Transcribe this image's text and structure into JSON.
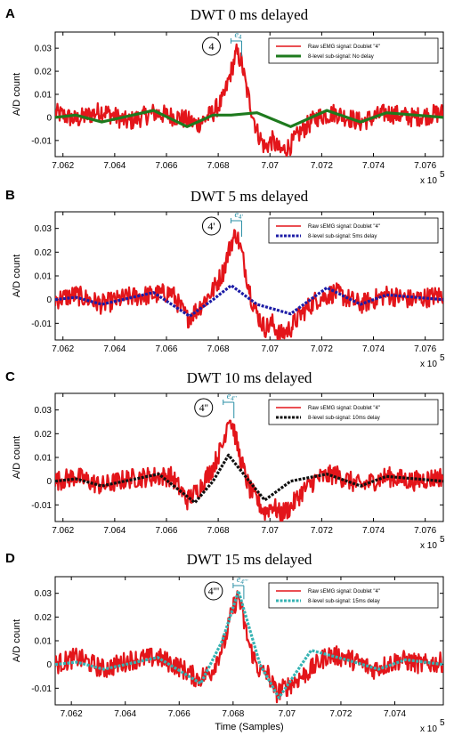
{
  "colors": {
    "raw": "#e3151a",
    "green": "#1e7a1e",
    "blue": "#1c1ca6",
    "black": "#111111",
    "cyan": "#36b3b3",
    "annot": "#2a8fa6"
  },
  "chart_data": [
    {
      "type": "line",
      "panel_label": "A",
      "title": "DWT 0 ms delayed",
      "ylabel": "A/D count",
      "xlabel": "",
      "x_multiplier": "x 10",
      "x_multiplier_exp": "5",
      "xlim": [
        7.0617,
        7.0767
      ],
      "ylim": [
        -0.017,
        0.037
      ],
      "xticks": [
        "7.062",
        "7.064",
        "7.066",
        "7.068",
        "7.07",
        "7.072",
        "7.074",
        "7.076"
      ],
      "yticks": [
        "0.03",
        "0.02",
        "0.01",
        "0",
        "-0.01"
      ],
      "annotation": {
        "circle_text": "4",
        "e_text": "e",
        "e_sub": "4"
      },
      "series": [
        {
          "name": "Raw sEMG signal: Doublet \"4\"",
          "style": "raw",
          "x": [
            7.0617,
            7.0625,
            7.0635,
            7.0645,
            7.0655,
            7.0665,
            7.0672,
            7.0678,
            7.0682,
            7.0685,
            7.0687,
            7.0689,
            7.0691,
            7.0693,
            7.0695,
            7.0698,
            7.0701,
            7.0704,
            7.0708,
            7.0712,
            7.0718,
            7.0725,
            7.0735,
            7.0745,
            7.0755,
            7.0767
          ],
          "y": [
            0.002,
            -0.001,
            0.003,
            -0.002,
            0.002,
            0.0,
            -0.003,
            0.002,
            0.008,
            0.02,
            0.028,
            0.024,
            0.012,
            0.003,
            -0.006,
            -0.013,
            -0.01,
            -0.015,
            -0.012,
            -0.006,
            0.0,
            0.002,
            -0.002,
            0.002,
            0.0,
            0.002
          ]
        },
        {
          "name": "8-level sub-signal: No delay",
          "style": "green",
          "x": [
            7.0617,
            7.0625,
            7.0635,
            7.0655,
            7.0668,
            7.0678,
            7.0685,
            7.0695,
            7.0708,
            7.0722,
            7.0735,
            7.0745,
            7.0767
          ],
          "y": [
            0.0,
            0.001,
            -0.002,
            0.003,
            -0.004,
            0.001,
            0.001,
            0.002,
            -0.004,
            0.003,
            -0.002,
            0.002,
            0.0
          ]
        }
      ]
    },
    {
      "type": "line",
      "panel_label": "B",
      "title": "DWT 5 ms delayed",
      "ylabel": "A/D count",
      "xlabel": "",
      "x_multiplier": "x 10",
      "x_multiplier_exp": "5",
      "xlim": [
        7.0617,
        7.0767
      ],
      "ylim": [
        -0.017,
        0.037
      ],
      "xticks": [
        "7.062",
        "7.064",
        "7.066",
        "7.068",
        "7.07",
        "7.072",
        "7.074",
        "7.076"
      ],
      "yticks": [
        "0.03",
        "0.02",
        "0.01",
        "0",
        "-0.01"
      ],
      "annotation": {
        "circle_text": "4'",
        "e_text": "e",
        "e_sub": "4'"
      },
      "series": [
        {
          "name": "Raw sEMG signal: Doublet \"4\"",
          "style": "raw",
          "x": [
            7.0617,
            7.0625,
            7.0635,
            7.0645,
            7.0655,
            7.0662,
            7.0668,
            7.0672,
            7.0678,
            7.0682,
            7.0685,
            7.0687,
            7.0689,
            7.0691,
            7.0693,
            7.0695,
            7.0698,
            7.0701,
            7.0704,
            7.0708,
            7.0712,
            7.0718,
            7.0725,
            7.0735,
            7.0745,
            7.0755,
            7.0767
          ],
          "y": [
            0.0,
            0.002,
            -0.002,
            0.001,
            0.002,
            0.003,
            -0.008,
            -0.004,
            0.004,
            0.012,
            0.024,
            0.028,
            0.02,
            0.01,
            0.0,
            -0.006,
            -0.012,
            -0.01,
            -0.015,
            -0.012,
            -0.006,
            0.0,
            0.003,
            -0.002,
            0.002,
            0.0,
            0.002
          ]
        },
        {
          "name": "8-level sub-signal: 5ms delay",
          "style": "blue",
          "x": [
            7.0617,
            7.0625,
            7.0635,
            7.0655,
            7.0669,
            7.0678,
            7.0685,
            7.0695,
            7.0708,
            7.0722,
            7.0735,
            7.0745,
            7.0767
          ],
          "y": [
            0.0,
            0.001,
            -0.002,
            0.003,
            -0.007,
            0.0,
            0.006,
            -0.002,
            -0.006,
            0.005,
            -0.002,
            0.002,
            0.0
          ]
        }
      ]
    },
    {
      "type": "line",
      "panel_label": "C",
      "title": "DWT 10 ms delayed",
      "ylabel": "A/D count",
      "xlabel": "",
      "x_multiplier": "x 10",
      "x_multiplier_exp": "5",
      "xlim": [
        7.0617,
        7.0767
      ],
      "ylim": [
        -0.017,
        0.037
      ],
      "xticks": [
        "7.062",
        "7.064",
        "7.066",
        "7.068",
        "7.07",
        "7.072",
        "7.074",
        "7.076"
      ],
      "yticks": [
        "0.03",
        "0.02",
        "0.01",
        "0",
        "-0.01"
      ],
      "annotation": {
        "circle_text": "4''",
        "e_text": "e",
        "e_sub": "4''"
      },
      "series": [
        {
          "name": "Raw sEMG signal: Doublet \"4\"",
          "style": "raw",
          "x": [
            7.0617,
            7.0625,
            7.0635,
            7.0645,
            7.0655,
            7.0662,
            7.0668,
            7.0672,
            7.0678,
            7.0682,
            7.0684,
            7.0686,
            7.0688,
            7.069,
            7.0692,
            7.0695,
            7.0698,
            7.0701,
            7.0704,
            7.0708,
            7.0712,
            7.0718,
            7.0725,
            7.0735,
            7.0745,
            7.0755,
            7.0767
          ],
          "y": [
            0.0,
            0.002,
            -0.002,
            0.001,
            0.002,
            0.002,
            -0.008,
            -0.004,
            0.006,
            0.016,
            0.028,
            0.022,
            0.012,
            0.004,
            -0.003,
            -0.008,
            -0.013,
            -0.01,
            -0.014,
            -0.011,
            -0.005,
            0.001,
            0.003,
            -0.002,
            0.002,
            0.0,
            0.002
          ]
        },
        {
          "name": "8-level sub-signal: 10ms delay",
          "style": "black",
          "x": [
            7.0617,
            7.0625,
            7.0635,
            7.0657,
            7.0671,
            7.0678,
            7.0684,
            7.0692,
            7.0698,
            7.0708,
            7.0722,
            7.0735,
            7.0745,
            7.0767
          ],
          "y": [
            0.0,
            0.001,
            -0.002,
            0.003,
            -0.009,
            0.0,
            0.011,
            0.0,
            -0.008,
            0.0,
            0.003,
            -0.002,
            0.002,
            0.0
          ]
        }
      ]
    },
    {
      "type": "line",
      "panel_label": "D",
      "title": "DWT 15 ms delayed",
      "ylabel": "A/D count",
      "xlabel": "Time (Samples)",
      "x_multiplier": "x 10",
      "x_multiplier_exp": "5",
      "xlim": [
        7.0614,
        7.0758
      ],
      "ylim": [
        -0.017,
        0.037
      ],
      "xticks": [
        "7.062",
        "7.064",
        "7.066",
        "7.068",
        "7.07",
        "7.072",
        "7.074"
      ],
      "yticks": [
        "0.03",
        "0.02",
        "0.01",
        "0",
        "-0.01"
      ],
      "annotation": {
        "circle_text": "4'''",
        "e_text": "e",
        "e_sub": "4'''"
      },
      "series": [
        {
          "name": "Raw sEMG signal: Doublet \"4\"",
          "style": "raw",
          "x": [
            7.0614,
            7.0622,
            7.0632,
            7.0642,
            7.0652,
            7.066,
            7.0667,
            7.0672,
            7.0677,
            7.068,
            7.0682,
            7.0684,
            7.0686,
            7.0688,
            7.069,
            7.0693,
            7.0696,
            7.0699,
            7.0703,
            7.0708,
            7.0715,
            7.0722,
            7.0732,
            7.0742,
            7.075,
            7.0758
          ],
          "y": [
            0.0,
            0.003,
            -0.002,
            0.002,
            0.003,
            -0.001,
            -0.006,
            -0.003,
            0.01,
            0.024,
            0.029,
            0.018,
            0.008,
            0.002,
            -0.003,
            -0.004,
            -0.012,
            -0.01,
            -0.007,
            -0.003,
            0.004,
            0.003,
            -0.002,
            0.002,
            0.0,
            0.001
          ]
        },
        {
          "name": "8-level sub-signal: 15ms delay",
          "style": "cyan",
          "x": [
            7.0614,
            7.0622,
            7.0632,
            7.0652,
            7.0668,
            7.0676,
            7.0682,
            7.069,
            7.0697,
            7.0709,
            7.0722,
            7.0734,
            7.0744,
            7.0758
          ],
          "y": [
            0.0,
            0.001,
            -0.002,
            0.003,
            -0.008,
            0.01,
            0.031,
            0.0,
            -0.014,
            0.006,
            0.002,
            -0.002,
            0.002,
            0.0
          ]
        }
      ]
    }
  ]
}
